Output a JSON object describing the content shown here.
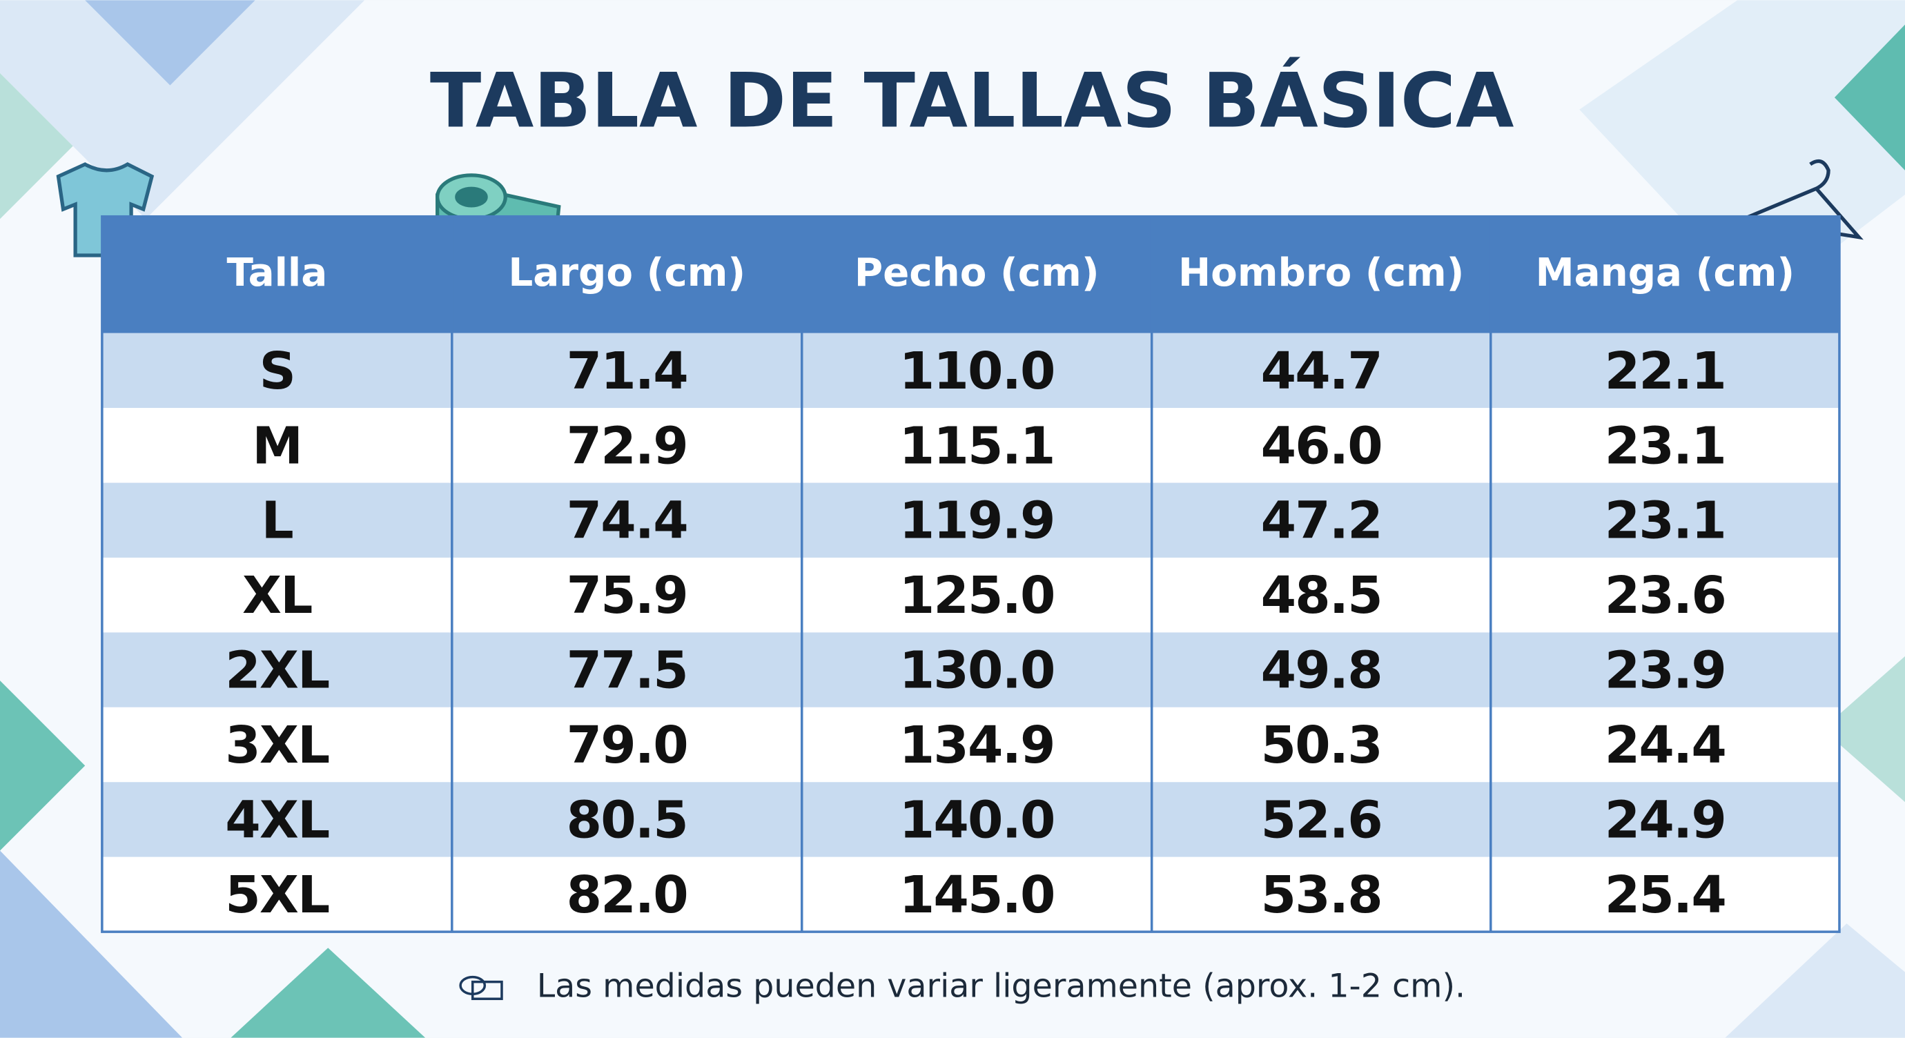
{
  "title": "TABLA DE TALLAS BÁSICA",
  "table": {
    "headers": [
      "Talla",
      "Largo (cm)",
      "Pecho (cm)",
      "Hombro (cm)",
      "Manga (cm)"
    ],
    "rows": [
      [
        "S",
        "71.4",
        "110.0",
        "44.7",
        "22.1"
      ],
      [
        "M",
        "72.9",
        "115.1",
        "46.0",
        "23.1"
      ],
      [
        "L",
        "74.4",
        "119.9",
        "47.2",
        "23.1"
      ],
      [
        "XL",
        "75.9",
        "125.0",
        "48.5",
        "23.6"
      ],
      [
        "2XL",
        "77.5",
        "130.0",
        "49.8",
        "23.9"
      ],
      [
        "3XL",
        "79.0",
        "134.9",
        "50.3",
        "24.4"
      ],
      [
        "4XL",
        "80.5",
        "140.0",
        "52.6",
        "24.9"
      ],
      [
        "5XL",
        "82.0",
        "145.0",
        "53.8",
        "25.4"
      ]
    ]
  },
  "footnote": "Las medidas pueden variar ligeramente (aprox. 1-2 cm)."
}
